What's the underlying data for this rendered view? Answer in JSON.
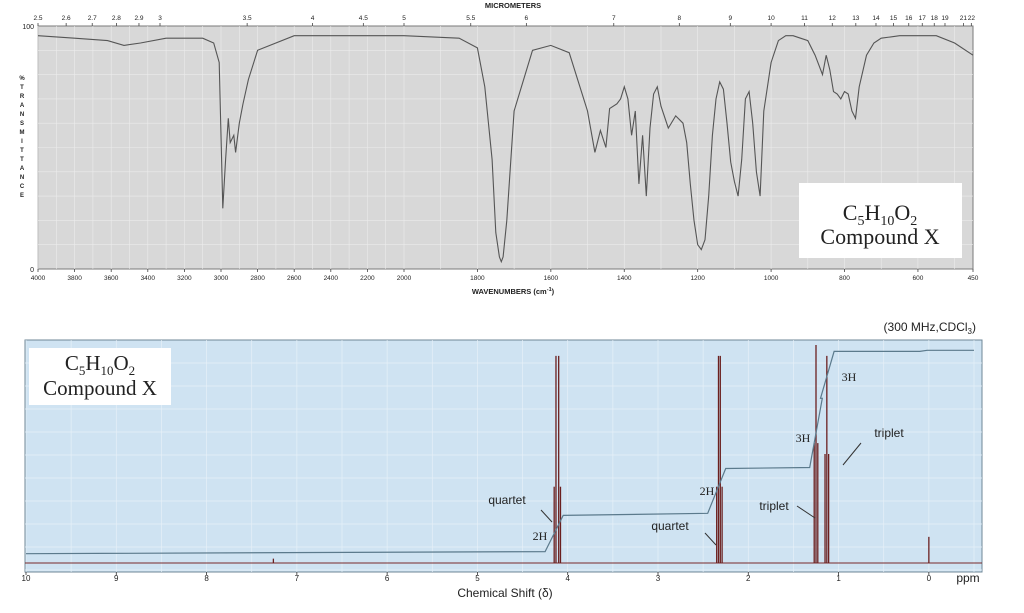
{
  "chart_data": [
    {
      "type": "line",
      "top_label": "MICROMETERS",
      "xlabel": "WAVENUMBERS (cm",
      "xlabel_sup": "-1",
      "xlabel_end": ")",
      "ylabel": "%TRANSMITTANCE",
      "ylim": [
        0,
        100
      ],
      "y_ticks": [
        "100",
        "0"
      ],
      "x_ticks": [
        "4000",
        "3800",
        "3600",
        "3400",
        "3200",
        "3000",
        "2800",
        "2600",
        "2400",
        "2200",
        "2000",
        "1800",
        "1600",
        "1400",
        "1200",
        "1000",
        "800",
        "600",
        "450"
      ],
      "micrometer_ticks": [
        "2.5",
        "2.6",
        "2.7",
        "2.8",
        "2.9",
        "3",
        "3.5",
        "4",
        "4.5",
        "5",
        "5.5",
        "6",
        "7",
        "8",
        "9",
        "10",
        "11",
        "12",
        "13",
        "14",
        "15",
        "16",
        "17",
        "18",
        "19",
        "21",
        "22"
      ],
      "compound": {
        "line1_parts": [
          "C",
          "5",
          "H",
          "10",
          "O",
          "2"
        ],
        "line2": "Compound X"
      },
      "x": [
        4000,
        3800,
        3620,
        3530,
        3440,
        3300,
        3100,
        3040,
        3010,
        3000,
        2990,
        2975,
        2960,
        2950,
        2930,
        2920,
        2900,
        2880,
        2850,
        2800,
        2600,
        2400,
        2200,
        2000,
        1850,
        1800,
        1780,
        1760,
        1750,
        1740,
        1735,
        1730,
        1720,
        1700,
        1650,
        1600,
        1550,
        1500,
        1480,
        1465,
        1450,
        1440,
        1420,
        1410,
        1400,
        1390,
        1380,
        1370,
        1360,
        1350,
        1340,
        1330,
        1320,
        1310,
        1300,
        1280,
        1260,
        1240,
        1230,
        1220,
        1210,
        1200,
        1190,
        1180,
        1170,
        1160,
        1150,
        1140,
        1130,
        1120,
        1110,
        1100,
        1090,
        1080,
        1070,
        1060,
        1050,
        1040,
        1030,
        1020,
        1000,
        980,
        960,
        940,
        920,
        900,
        880,
        860,
        850,
        840,
        830,
        820,
        810,
        800,
        790,
        780,
        770,
        760,
        740,
        720,
        700,
        650,
        600,
        550,
        500,
        450
      ],
      "y": [
        96,
        95,
        94,
        92,
        93,
        95,
        95,
        93,
        85,
        55,
        25,
        45,
        62,
        52,
        55,
        48,
        60,
        68,
        78,
        90,
        96,
        96,
        96,
        96,
        95,
        91,
        75,
        45,
        15,
        5,
        3,
        5,
        20,
        65,
        90,
        92,
        89,
        65,
        48,
        57,
        50,
        66,
        68,
        70,
        75,
        70,
        55,
        65,
        35,
        55,
        30,
        58,
        72,
        75,
        67,
        58,
        63,
        60,
        52,
        35,
        20,
        10,
        8,
        12,
        30,
        55,
        70,
        77,
        74,
        60,
        44,
        36,
        30,
        45,
        70,
        73,
        60,
        40,
        30,
        65,
        85,
        94,
        96,
        96,
        95,
        94,
        88,
        80,
        88,
        82,
        73,
        72,
        70,
        73,
        72,
        65,
        62,
        75,
        88,
        93,
        95,
        96,
        96,
        96,
        93,
        88
      ]
    },
    {
      "type": "line",
      "subtitle": "(300 MHz,CDCl",
      "subtitle_sub": "3",
      "subtitle_end": ")",
      "xlabel": "Chemical Shift (δ)",
      "x_unit": "ppm",
      "xlim": [
        10,
        -0.5
      ],
      "x_ticks": [
        "10",
        "9",
        "8",
        "7",
        "6",
        "5",
        "4",
        "3",
        "2",
        "1",
        "0"
      ],
      "compound": {
        "line1_parts": [
          "C",
          "5",
          "H",
          "10",
          "O",
          "2"
        ],
        "line2": "Compound X"
      },
      "peaks": [
        {
          "shift": 4.12,
          "multiplicity": "quartet",
          "integration": "2H",
          "lines": [
            4.15,
            4.13,
            4.1,
            4.08
          ],
          "heights": [
            0.35,
            0.95,
            0.95,
            0.35
          ]
        },
        {
          "shift": 2.32,
          "multiplicity": "quartet",
          "integration": "2H",
          "lines": [
            2.35,
            2.33,
            2.31,
            2.29
          ],
          "heights": [
            0.35,
            0.95,
            0.95,
            0.35
          ]
        },
        {
          "shift": 1.25,
          "multiplicity": "triplet",
          "integration": "3H",
          "lines": [
            1.27,
            1.25,
            1.23
          ],
          "heights": [
            0.55,
            1.0,
            0.55
          ]
        },
        {
          "shift": 1.13,
          "multiplicity": "triplet",
          "integration": "3H",
          "lines": [
            1.15,
            1.13,
            1.11
          ],
          "heights": [
            0.5,
            0.95,
            0.5
          ]
        },
        {
          "shift": 0.0,
          "lines": [
            0.0
          ],
          "heights": [
            0.12
          ]
        },
        {
          "shift": 7.26,
          "lines": [
            7.26
          ],
          "heights": [
            0.02
          ]
        }
      ],
      "integral_steps": [
        0.02,
        0.2,
        0.42,
        0.75,
        0.97
      ]
    }
  ]
}
